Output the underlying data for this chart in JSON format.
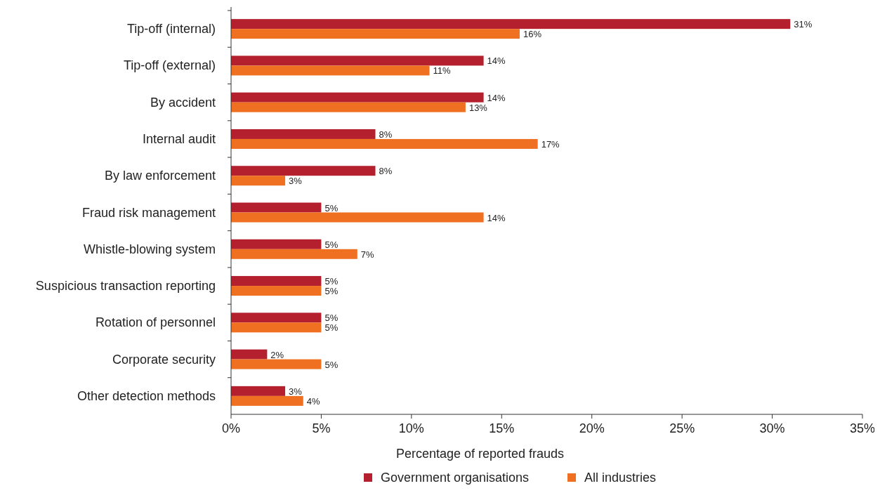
{
  "chart_data": {
    "type": "bar",
    "orientation": "horizontal",
    "xlabel": "Percentage of reported frauds",
    "categories": [
      "Tip-off (internal)",
      "Tip-off (external)",
      "By accident",
      "Internal audit",
      "By law enforcement",
      "Fraud risk management",
      "Whistle-blowing system",
      "Suspicious transaction reporting",
      "Rotation of personnel",
      "Corporate security",
      "Other detection methods"
    ],
    "series": [
      {
        "name": "Government organisations",
        "color": "#b5202e",
        "values": [
          31,
          14,
          14,
          8,
          8,
          5,
          5,
          5,
          5,
          2,
          3
        ],
        "value_labels": [
          "31%",
          "14%",
          "14%",
          "8%",
          "8%",
          "5%",
          "5%",
          "5%",
          "5%",
          "2%",
          "3%"
        ]
      },
      {
        "name": "All industries",
        "color": "#f07022",
        "values": [
          16,
          11,
          13,
          17,
          3,
          14,
          7,
          5,
          5,
          5,
          4
        ],
        "value_labels": [
          "16%",
          "11%",
          "13%",
          "17%",
          "3%",
          "14%",
          "7%",
          "5%",
          "5%",
          "5%",
          "4%"
        ]
      }
    ],
    "xlim": [
      0,
      35
    ],
    "xticks": [
      {
        "value": 0,
        "label": "0%"
      },
      {
        "value": 5,
        "label": "5%"
      },
      {
        "value": 10,
        "label": "10%"
      },
      {
        "value": 15,
        "label": "15%"
      },
      {
        "value": 20,
        "label": "20%"
      },
      {
        "value": 25,
        "label": "25%"
      },
      {
        "value": 30,
        "label": "30%"
      },
      {
        "value": 35,
        "label": "35%"
      }
    ],
    "grid": false,
    "legend": "bottom"
  }
}
